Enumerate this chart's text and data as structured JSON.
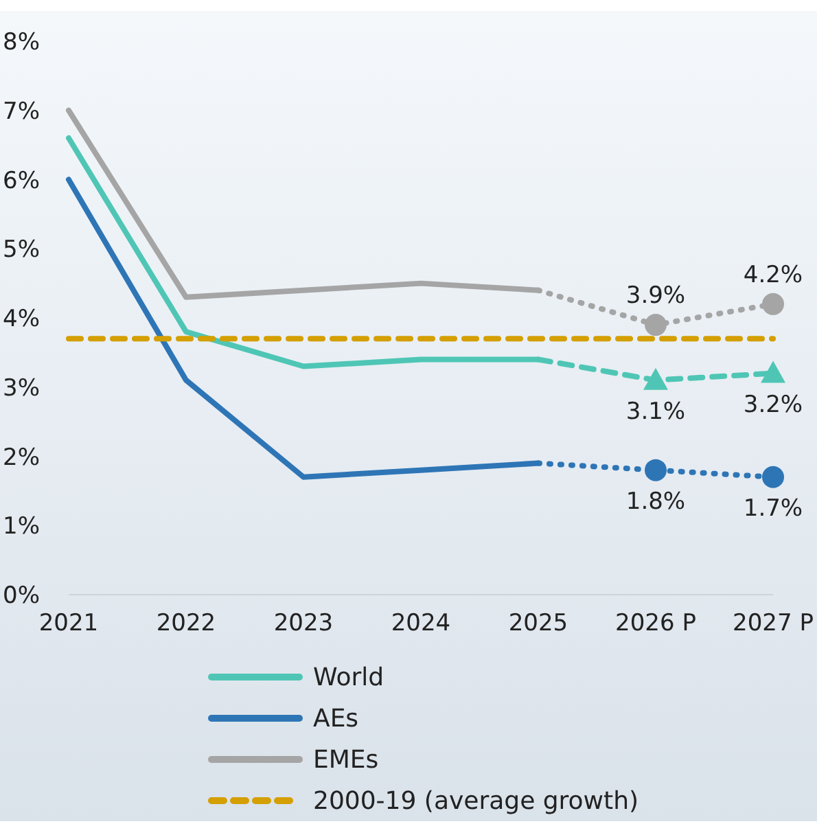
{
  "chart_data": {
    "type": "line",
    "categories": [
      "2021",
      "2022",
      "2023",
      "2024",
      "2025",
      "2026 P",
      "2027 P"
    ],
    "series": [
      {
        "name": "World",
        "color": "#4fc6b5",
        "values": [
          6.6,
          3.8,
          3.3,
          3.4,
          3.4,
          null,
          null
        ]
      },
      {
        "name": "AEs",
        "color": "#2e75b6",
        "values": [
          6.0,
          3.1,
          1.7,
          1.8,
          1.9,
          null,
          null
        ]
      },
      {
        "name": "EMEs",
        "color": "#a5a5a5",
        "values": [
          7.0,
          4.3,
          4.4,
          4.5,
          4.4,
          null,
          null
        ]
      },
      {
        "name": "2000-19 (average growth)",
        "color": "#d49f00",
        "line_style": "dashed",
        "values": [
          3.7,
          3.7,
          3.7,
          3.7,
          3.7,
          3.7,
          3.7
        ]
      },
      {
        "color": "#4fc6b5",
        "line_style": "dashed",
        "marker": "triangle",
        "values": [
          null,
          null,
          null,
          null,
          3.4,
          3.1,
          3.2
        ],
        "value_labels": [
          null,
          null,
          null,
          null,
          null,
          "3.1%",
          "3.2%"
        ]
      },
      {
        "color": "#2e75b6",
        "line_style": "dotted",
        "marker": "circle",
        "values": [
          null,
          null,
          null,
          null,
          1.9,
          1.8,
          1.7
        ],
        "value_labels": [
          null,
          null,
          null,
          null,
          null,
          "1.8%",
          "1.7%"
        ]
      },
      {
        "color": "#a5a5a5",
        "line_style": "dotted",
        "marker": "circle",
        "values": [
          null,
          null,
          null,
          null,
          4.4,
          3.9,
          4.2
        ],
        "value_labels": [
          null,
          null,
          null,
          null,
          null,
          "3.9%",
          "4.2%"
        ]
      }
    ],
    "ylim": [
      0,
      8
    ],
    "yticks": [
      {
        "value": 0,
        "label": "0%"
      },
      {
        "value": 1,
        "label": "1%"
      },
      {
        "value": 2,
        "label": "2%"
      },
      {
        "value": 3,
        "label": "3%"
      },
      {
        "value": 4,
        "label": "4%"
      },
      {
        "value": 5,
        "label": "5%"
      },
      {
        "value": 6,
        "label": "6%"
      },
      {
        "value": 7,
        "label": "7%"
      },
      {
        "value": 8,
        "label": "8%"
      }
    ],
    "grid": false,
    "legend": "bottom"
  }
}
